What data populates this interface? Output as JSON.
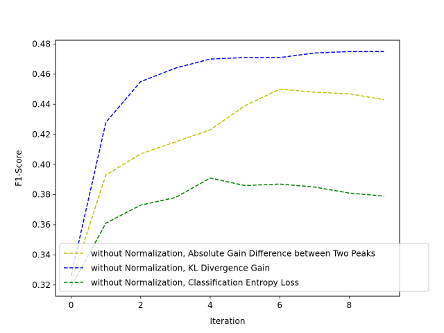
{
  "chart_data": {
    "type": "line",
    "xlabel": "Iteration",
    "ylabel": "F1-Score",
    "xlim": [
      -0.45,
      9.45
    ],
    "ylim": [
      0.3125,
      0.4825
    ],
    "x_ticks": [
      0,
      2,
      4,
      6,
      8
    ],
    "y_ticks": [
      0.32,
      0.34,
      0.36,
      0.38,
      0.4,
      0.42,
      0.44,
      0.46,
      0.48
    ],
    "x_tick_labels": [
      "0",
      "2",
      "4",
      "6",
      "8"
    ],
    "y_tick_labels": [
      "0.32",
      "0.34",
      "0.36",
      "0.38",
      "0.40",
      "0.42",
      "0.44",
      "0.46",
      "0.48"
    ],
    "grid": false,
    "legend_position": "lower-right",
    "x": [
      0,
      1,
      2,
      3,
      4,
      5,
      6,
      7,
      8,
      9
    ],
    "series": [
      {
        "name": "without Normalization, Absolute Gain Difference between Two Peaks",
        "color": "#bfbf00",
        "style": "dashed",
        "values": [
          0.322,
          0.393,
          0.407,
          0.415,
          0.423,
          0.439,
          0.45,
          0.448,
          0.447,
          0.443
        ]
      },
      {
        "name": "without Normalization, KL Divergence Gain",
        "color": "#0000ff",
        "style": "dashed",
        "values": [
          0.326,
          0.428,
          0.455,
          0.464,
          0.47,
          0.471,
          0.471,
          0.474,
          0.475,
          0.475
        ]
      },
      {
        "name": "without Normalization, Classification Entropy Loss",
        "color": "#008000",
        "style": "dashed",
        "values": [
          0.319,
          0.361,
          0.373,
          0.378,
          0.391,
          0.386,
          0.387,
          0.385,
          0.381,
          0.379
        ]
      }
    ]
  }
}
